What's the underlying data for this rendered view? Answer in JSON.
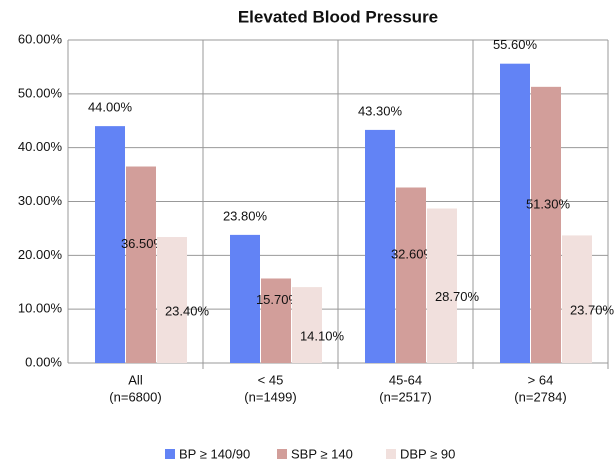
{
  "chart_data": {
    "type": "bar",
    "title": "Elevated Blood Pressure",
    "categories": [
      [
        "All",
        "(n=6800)"
      ],
      [
        "< 45",
        "(n=1499)"
      ],
      [
        "45-64",
        "(n=2517)"
      ],
      [
        "> 64",
        "(n=2784)"
      ]
    ],
    "series": [
      {
        "name": "BP ≥ 140/90",
        "color": "#6283f5",
        "values": [
          44.0,
          23.8,
          43.3,
          55.6
        ],
        "value_labels": [
          "44.00%",
          "23.80%",
          "43.30%",
          "55.60%"
        ]
      },
      {
        "name": "SBP ≥ 140",
        "color": "#d29e9a",
        "values": [
          36.5,
          15.7,
          32.6,
          51.3
        ],
        "value_labels": [
          "36.50%",
          "15.70%",
          "32.60%",
          "51.30%"
        ]
      },
      {
        "name": "DBP ≥ 90",
        "color": "#f1e0dd",
        "values": [
          23.4,
          14.1,
          28.7,
          23.7
        ],
        "value_labels": [
          "23.40%",
          "14.10%",
          "28.70%",
          "23.70%"
        ]
      }
    ],
    "ylim": [
      0,
      60
    ],
    "yticks": [
      {
        "value": 0,
        "label": "0.00%"
      },
      {
        "value": 10,
        "label": "10.00%"
      },
      {
        "value": 20,
        "label": "20.00%"
      },
      {
        "value": 30,
        "label": "30.00%"
      },
      {
        "value": 40,
        "label": "40.00%"
      },
      {
        "value": 50,
        "label": "50.00%"
      },
      {
        "value": 60,
        "label": "60.00%"
      }
    ],
    "grid": true,
    "legend": "bottom"
  }
}
